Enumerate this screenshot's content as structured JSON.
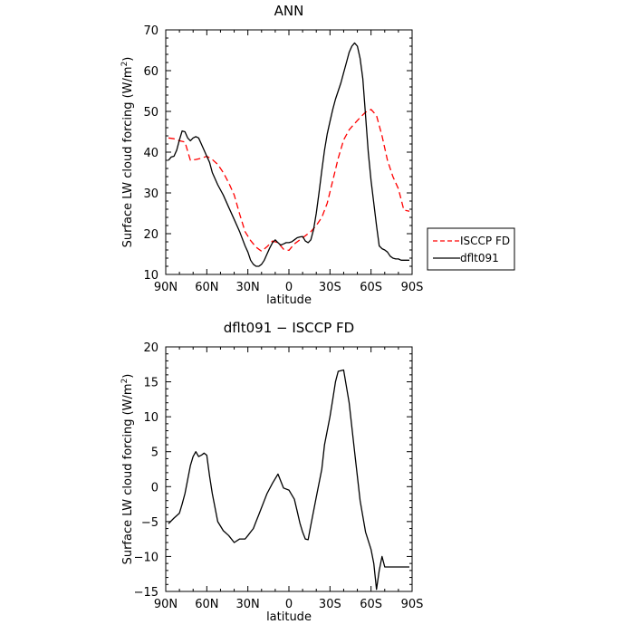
{
  "chart_data": [
    {
      "type": "line",
      "title": "ANN",
      "xlabel": "latitude",
      "ylabel_prefix": "Surface LW cloud forcing (W/m",
      "ylabel_sup": "2",
      "ylabel_suffix": ")",
      "xlim": [
        90,
        -90
      ],
      "ylim": [
        10,
        70
      ],
      "x_ticks": [
        90,
        60,
        30,
        0,
        -30,
        -60,
        -90
      ],
      "x_tick_labels": [
        "90N",
        "60N",
        "30N",
        "0",
        "30S",
        "60S",
        "90S"
      ],
      "y_ticks": [
        10,
        20,
        30,
        40,
        50,
        60,
        70
      ],
      "y_tick_labels": [
        "10",
        "20",
        "30",
        "40",
        "50",
        "60",
        "70"
      ],
      "legend": {
        "position": "right"
      },
      "series": [
        {
          "name": "ISCCP FD",
          "color": "#ff0000",
          "dash": "dashed",
          "x": [
            88,
            84,
            80,
            76,
            72,
            68,
            64,
            60,
            56,
            52,
            48,
            44,
            40,
            36,
            32,
            28,
            24,
            20,
            16,
            12,
            8,
            4,
            0,
            -4,
            -8,
            -12,
            -16,
            -20,
            -24,
            -28,
            -32,
            -36,
            -40,
            -44,
            -48,
            -52,
            -56,
            -60,
            -64,
            -68,
            -72,
            -76,
            -80,
            -84,
            -88
          ],
          "y": [
            43.5,
            43.3,
            42.8,
            42.5,
            38,
            38.2,
            38.5,
            39,
            38.2,
            37,
            35,
            32.5,
            29.5,
            24.8,
            20.5,
            18.3,
            16.7,
            15.7,
            16.8,
            18.2,
            17.8,
            16.2,
            15.9,
            17.5,
            18.5,
            19.5,
            20.5,
            22,
            24,
            27.5,
            33,
            38.5,
            43,
            45.5,
            47,
            48.5,
            49.8,
            50.5,
            49,
            44,
            38,
            34,
            31,
            25.8,
            25.5
          ]
        },
        {
          "name": "dflt091",
          "color": "#000000",
          "dash": "solid",
          "x": [
            88,
            86,
            84,
            82,
            80,
            78,
            76,
            74,
            72,
            70,
            68,
            66,
            64,
            62,
            60,
            58,
            56,
            52,
            48,
            44,
            40,
            36,
            32,
            30,
            28,
            26,
            24,
            22,
            20,
            18,
            16,
            14,
            12,
            10,
            8,
            6,
            4,
            2,
            0,
            -2,
            -4,
            -6,
            -8,
            -10,
            -12,
            -14,
            -16,
            -18,
            -20,
            -22,
            -24,
            -26,
            -28,
            -30,
            -32,
            -34,
            -36,
            -38,
            -40,
            -42,
            -44,
            -46,
            -48,
            -50,
            -52,
            -54,
            -56,
            -58,
            -60,
            -62,
            -64,
            -66,
            -68,
            -70,
            -72,
            -74,
            -76,
            -78,
            -80,
            -82,
            -84,
            -86,
            -88
          ],
          "y": [
            38,
            38.8,
            39,
            40.5,
            43,
            45.2,
            45,
            43.5,
            42.8,
            43.5,
            43.8,
            43.5,
            42,
            40.5,
            39,
            37.5,
            35,
            32,
            29.5,
            26.5,
            23.5,
            20.5,
            17,
            15.5,
            13.5,
            12.5,
            12,
            12,
            12.5,
            13.5,
            15,
            16.5,
            17.8,
            18.5,
            17.8,
            17.2,
            17.5,
            17.8,
            17.8,
            18,
            18.5,
            19,
            19.2,
            19.3,
            18.2,
            17.8,
            18.5,
            21,
            25,
            30,
            35.5,
            40.5,
            44.5,
            47.5,
            50.5,
            53,
            55,
            57,
            59.5,
            62,
            64.5,
            66,
            66.8,
            66,
            63,
            58,
            49,
            40,
            33,
            27.5,
            22,
            17,
            16.3,
            16,
            15.5,
            14.5,
            14,
            13.8,
            13.8,
            13.5,
            13.5,
            13.5,
            13.5
          ]
        }
      ]
    },
    {
      "type": "line",
      "title": "dflt091 − ISCCP FD",
      "xlabel": "latitude",
      "ylabel_prefix": "Surface LW cloud forcing (W/m",
      "ylabel_sup": "2",
      "ylabel_suffix": ")",
      "xlim": [
        90,
        -90
      ],
      "ylim": [
        -15,
        20
      ],
      "x_ticks": [
        90,
        60,
        30,
        0,
        -30,
        -60,
        -90
      ],
      "x_tick_labels": [
        "90N",
        "60N",
        "30N",
        "0",
        "30S",
        "60S",
        "90S"
      ],
      "y_ticks": [
        -15,
        -10,
        -5,
        0,
        5,
        10,
        15,
        20
      ],
      "y_tick_labels": [
        "−15",
        "−10",
        "−5",
        "0",
        "5",
        "10",
        "15",
        "20"
      ],
      "series": [
        {
          "name": "",
          "color": "#000000",
          "dash": "solid",
          "x": [
            88,
            84,
            80,
            78,
            76,
            72,
            70,
            68,
            66,
            64,
            62,
            60,
            58,
            56,
            52,
            48,
            44,
            40,
            36,
            32,
            30,
            28,
            26,
            24,
            22,
            20,
            18,
            16,
            12,
            8,
            4,
            0,
            -4,
            -6,
            -8,
            -10,
            -12,
            -14,
            -16,
            -20,
            -24,
            -26,
            -28,
            -30,
            -32,
            -34,
            -36,
            -40,
            -44,
            -48,
            -52,
            -56,
            -60,
            -62,
            -64,
            -66,
            -68,
            -70,
            -72,
            -74,
            -76,
            -78,
            -80,
            -82,
            -84,
            -86,
            -88
          ],
          "y": [
            -5.3,
            -4.5,
            -3.8,
            -2.5,
            -1,
            3,
            4.3,
            5,
            4.3,
            4.5,
            4.8,
            4.5,
            1.5,
            -1,
            -5,
            -6.3,
            -7,
            -8,
            -7.5,
            -7.5,
            -7,
            -6.5,
            -6,
            -5,
            -4,
            -3,
            -2,
            -1,
            0.5,
            1.8,
            -0.2,
            -0.5,
            -1.8,
            -3.5,
            -5.2,
            -6.5,
            -7.5,
            -7.6,
            -5.5,
            -1.5,
            2.5,
            6,
            8,
            10,
            12.5,
            15,
            16.5,
            16.7,
            12,
            5,
            -2,
            -6.5,
            -9,
            -11,
            -14.7,
            -12,
            -10,
            -11.5,
            -11.5,
            -11.5,
            -11.5,
            -11.5,
            -11.5,
            -11.5,
            -11.5,
            -11.5,
            -11.5
          ]
        }
      ]
    }
  ]
}
